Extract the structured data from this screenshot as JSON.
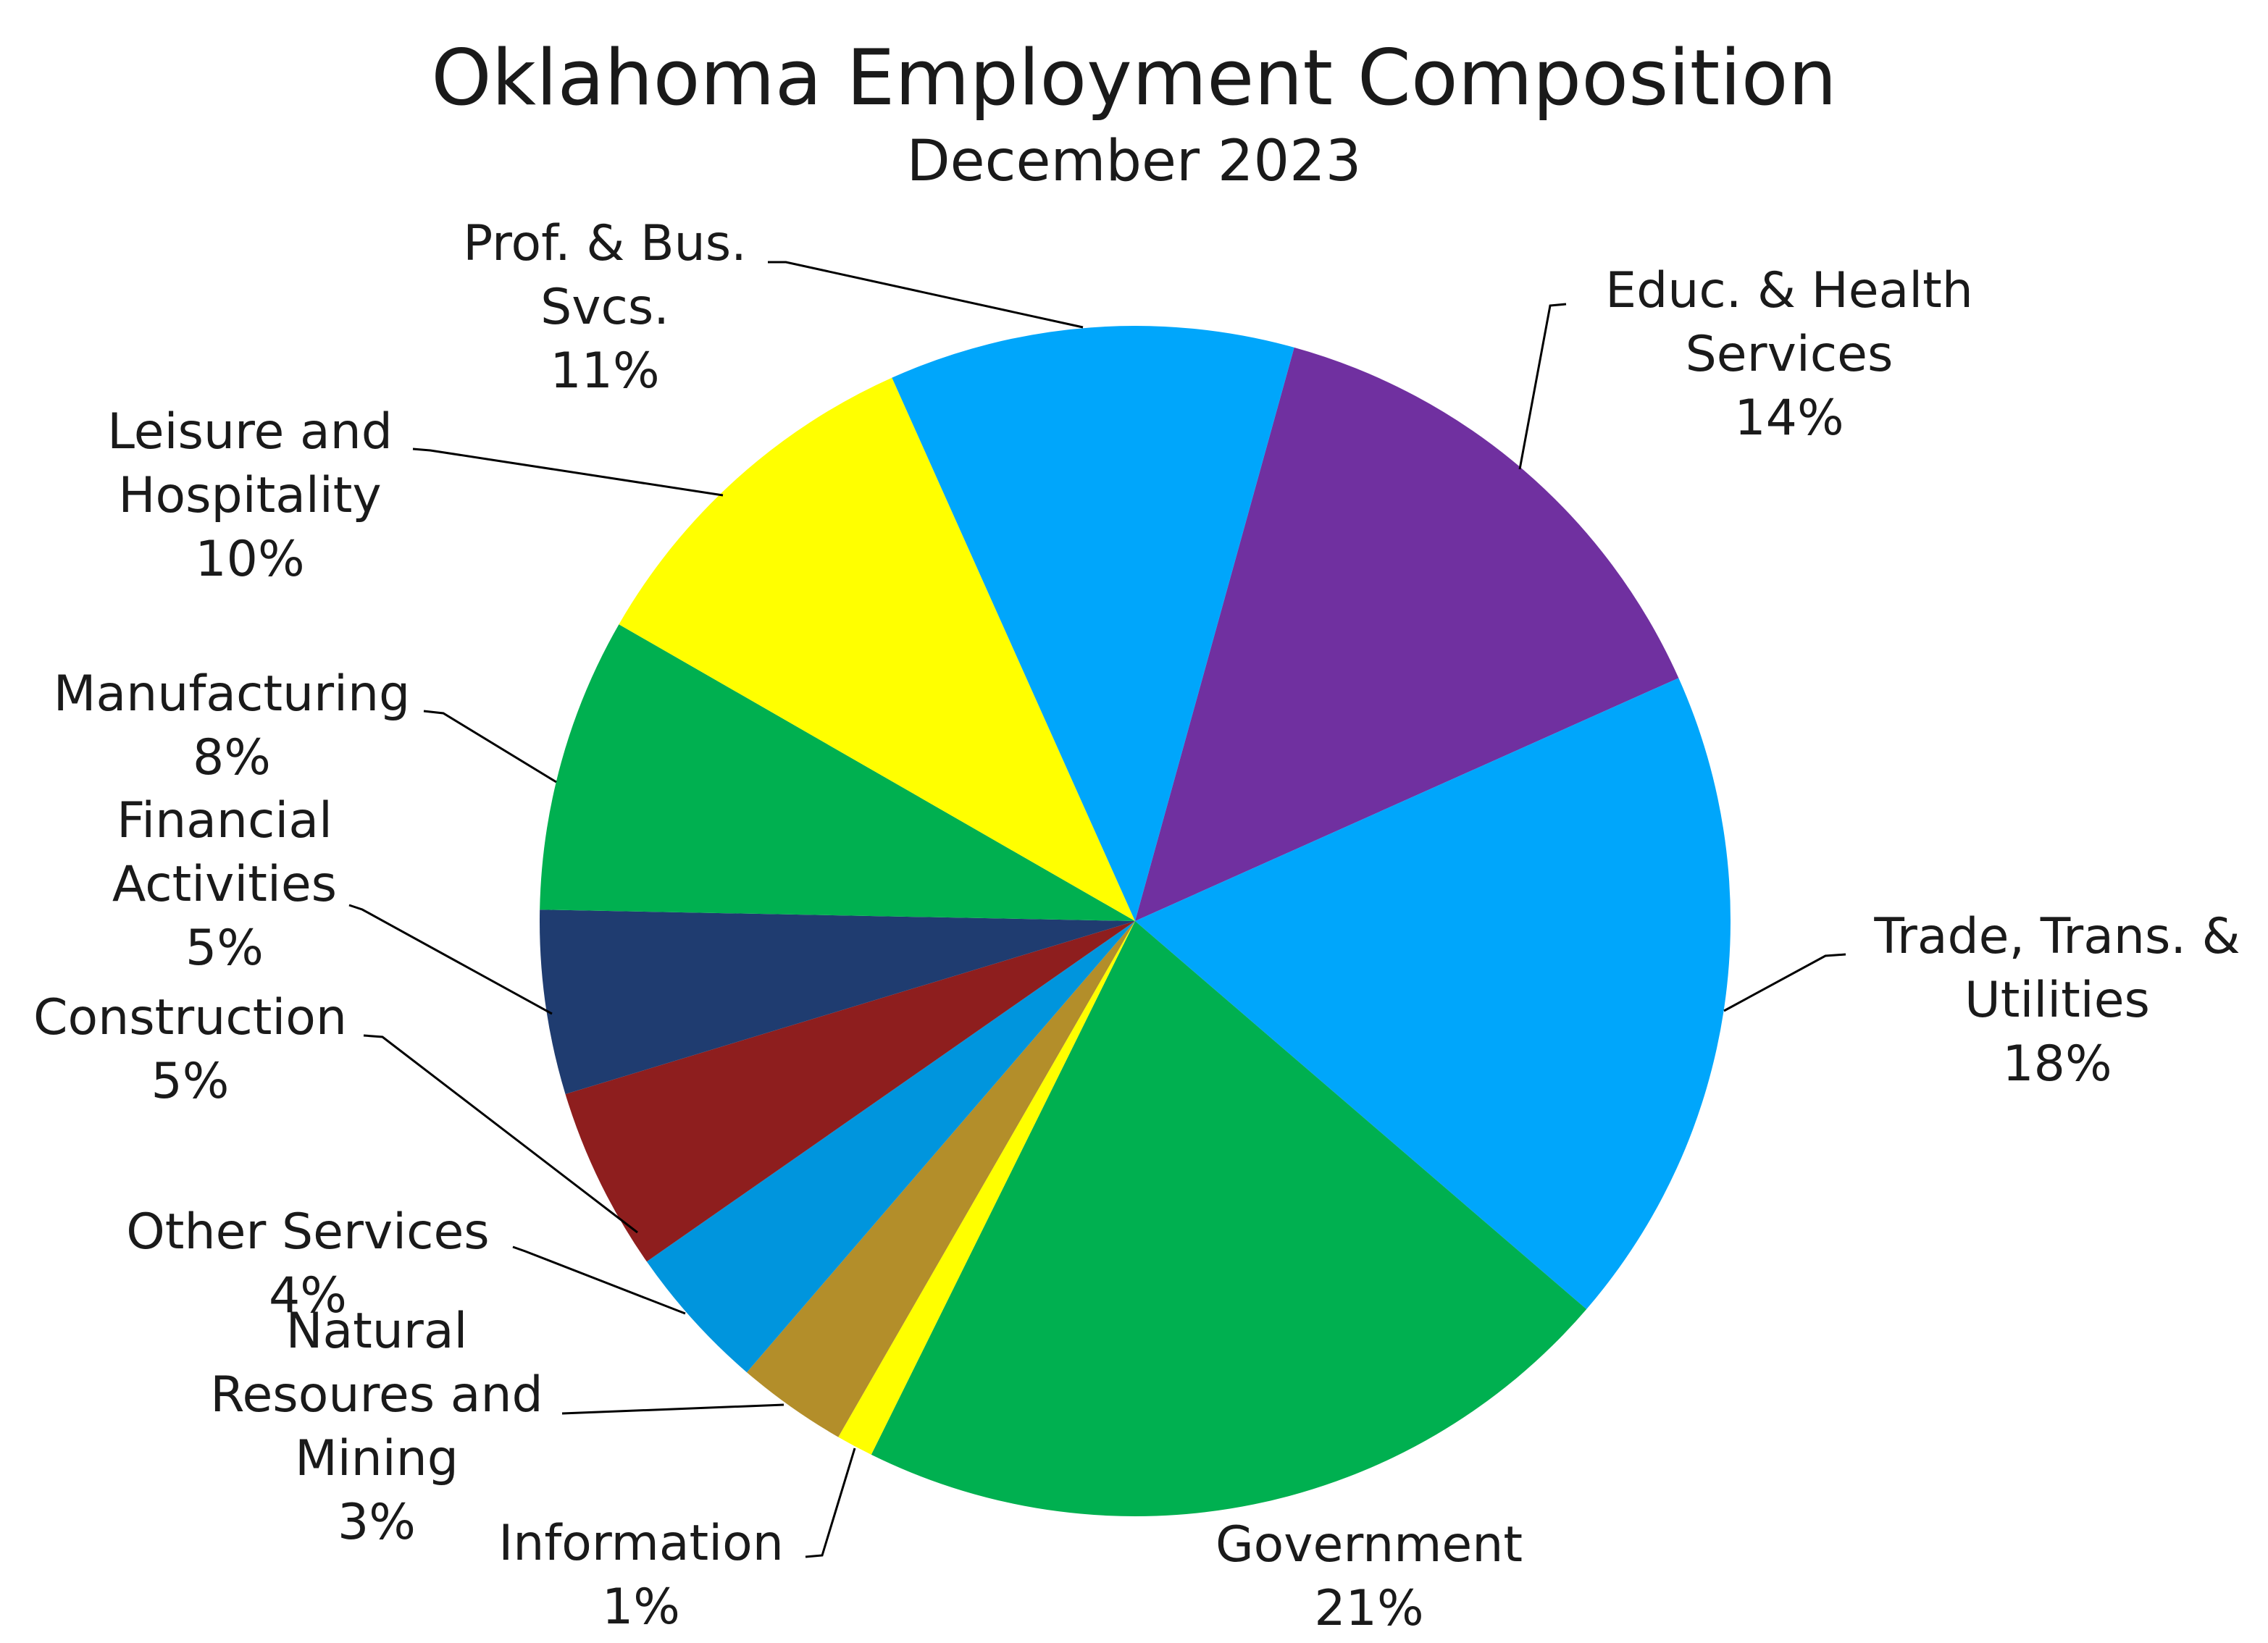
{
  "chart_data": {
    "type": "pie",
    "title": "Oklahoma Employment Composition",
    "subtitle": "December 2023",
    "start_angle_deg": 15.5,
    "direction": "clockwise",
    "slices": [
      {
        "label": "Educ. & Health Services",
        "value": 14,
        "color": "#7030A0"
      },
      {
        "label": "Trade, Trans. & Utilities",
        "value": 18,
        "color": "#00A6FB"
      },
      {
        "label": "Government",
        "value": 21,
        "color": "#00B050"
      },
      {
        "label": "Information",
        "value": 1,
        "color": "#FFFF00"
      },
      {
        "label": "Natural Resoures and Mining",
        "value": 3,
        "color": "#B38E2A"
      },
      {
        "label": "Other Services",
        "value": 4,
        "color": "#0095DD"
      },
      {
        "label": "Construction",
        "value": 5,
        "color": "#8E1E1E"
      },
      {
        "label": "Financial Activities",
        "value": 5,
        "color": "#1F3C70"
      },
      {
        "label": "Manufacturing",
        "value": 8,
        "color": "#00B050"
      },
      {
        "label": "Leisure and Hospitality",
        "value": 10,
        "color": "#FFFF00"
      },
      {
        "label": "Prof. & Bus. Svcs.",
        "value": 11,
        "color": "#00A6FB"
      }
    ],
    "labels": [
      {
        "lines": [
          "Educ. & Health",
          "Services"
        ],
        "pct": "14%"
      },
      {
        "lines": [
          "Trade, Trans. &",
          "Utilities"
        ],
        "pct": "18%"
      },
      {
        "lines": [
          "Government"
        ],
        "pct": "21%"
      },
      {
        "lines": [
          "Information"
        ],
        "pct": "1%"
      },
      {
        "lines": [
          "Natural",
          "Resoures and",
          "Mining"
        ],
        "pct": "3%"
      },
      {
        "lines": [
          "Other Services"
        ],
        "pct": "4%"
      },
      {
        "lines": [
          "Construction"
        ],
        "pct": "5%"
      },
      {
        "lines": [
          "Financial",
          "Activities"
        ],
        "pct": "5%"
      },
      {
        "lines": [
          "Manufacturing"
        ],
        "pct": "8%"
      },
      {
        "lines": [
          "Leisure and",
          "Hospitality"
        ],
        "pct": "10%"
      },
      {
        "lines": [
          "Prof. & Bus.",
          "Svcs."
        ],
        "pct": "11%"
      }
    ],
    "line_color": "#000000"
  }
}
